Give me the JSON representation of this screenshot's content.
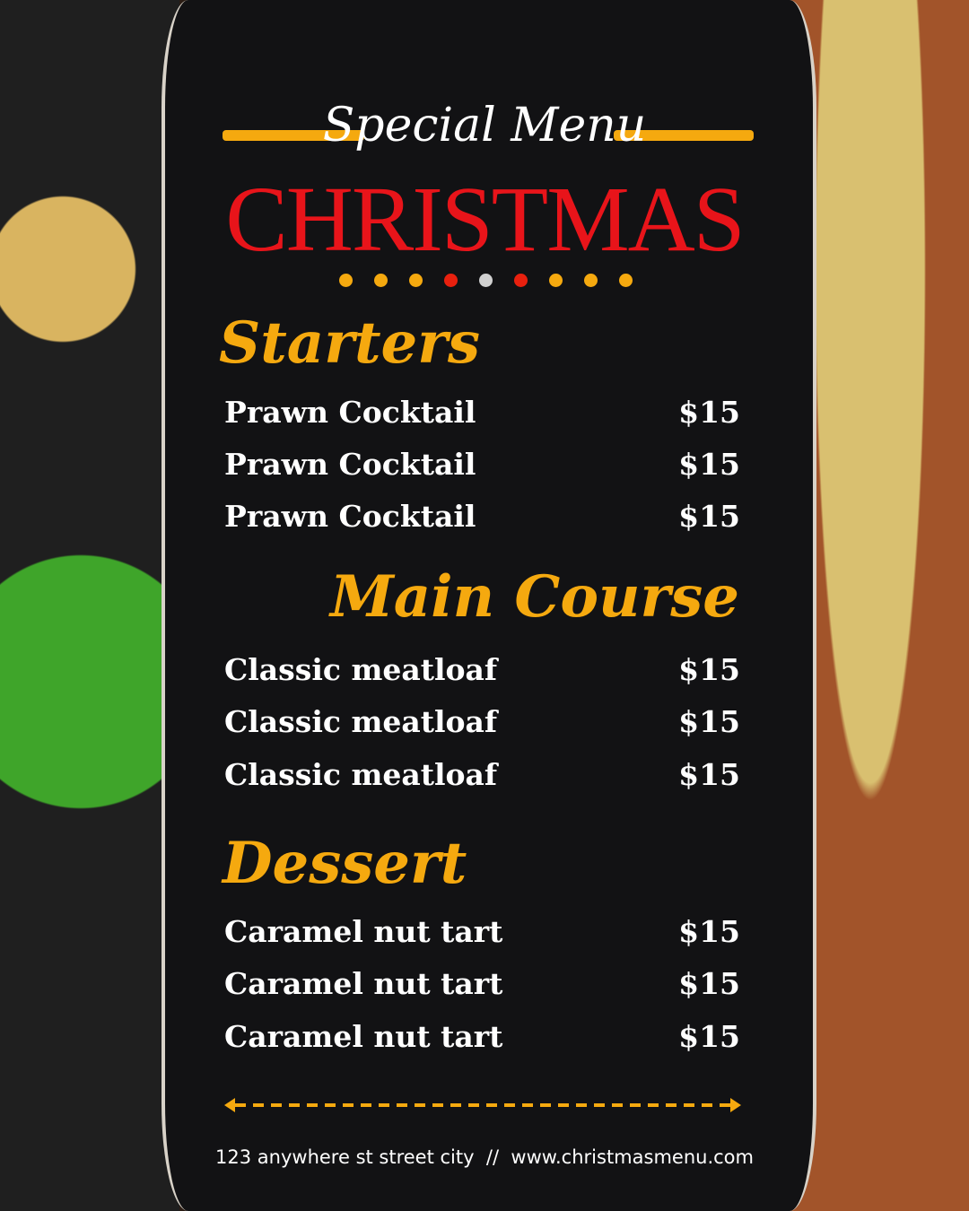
{
  "header": {
    "subtitle": "Special Menu",
    "title": "CHRISTMAS",
    "dot_colors": [
      "#f5a90f",
      "#f5a90f",
      "#f5a90f",
      "#e8200e",
      "#d0d0d0",
      "#e8200e",
      "#f5a90f",
      "#f5a90f",
      "#f5a90f"
    ],
    "accent": "#f5a90f",
    "title_color": "#e8141a"
  },
  "sections": [
    {
      "heading": "Starters",
      "items": [
        {
          "name": "Prawn Cocktail",
          "price": "$15"
        },
        {
          "name": "Prawn Cocktail",
          "price": "$15"
        },
        {
          "name": "Prawn Cocktail",
          "price": "$15"
        }
      ]
    },
    {
      "heading": "Main Course",
      "items": [
        {
          "name": "Classic meatloaf",
          "price": "$15"
        },
        {
          "name": "Classic meatloaf",
          "price": "$15"
        },
        {
          "name": "Classic meatloaf",
          "price": "$15"
        }
      ]
    },
    {
      "heading": "Dessert",
      "items": [
        {
          "name": "Caramel nut tart",
          "price": "$15"
        },
        {
          "name": "Caramel nut tart",
          "price": "$15"
        },
        {
          "name": "Caramel nut tart",
          "price": "$15"
        }
      ]
    }
  ],
  "footer": {
    "text": "123 anywhere st street city  //  www.christmasmenu.com"
  }
}
